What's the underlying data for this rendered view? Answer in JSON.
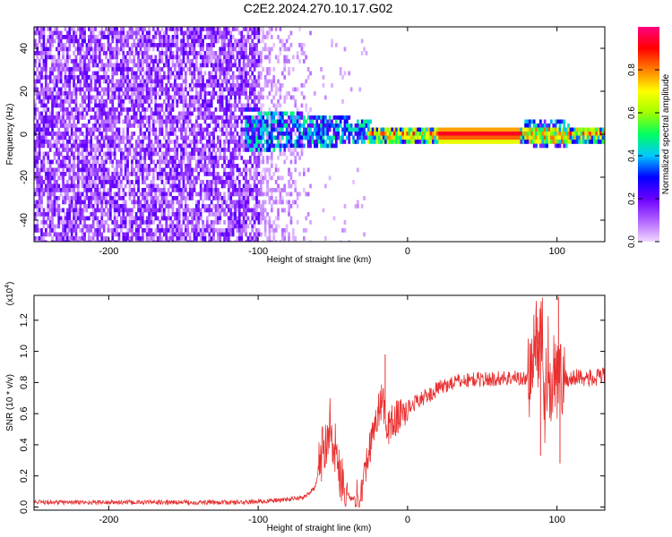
{
  "title": "C2E2.2024.270.10.17.G02",
  "chart_data": [
    {
      "type": "heatmap",
      "xlabel": "Height of straight line (km)",
      "ylabel": "Frequency (Hz)",
      "xlim": [
        -250,
        132
      ],
      "ylim": [
        -50,
        50
      ],
      "xticks": [
        -200,
        -100,
        0,
        100
      ],
      "yticks": [
        -40,
        -20,
        0,
        20,
        40
      ],
      "colorbar": {
        "label": "Normalized spectral amplitude",
        "range": [
          0,
          1
        ],
        "ticks": [
          0.0,
          0.2,
          0.4,
          0.6,
          0.8
        ],
        "colors": [
          "#f0d8ff",
          "#b060ff",
          "#6a00ff",
          "#0000ff",
          "#00c8ff",
          "#00ff60",
          "#a0ff00",
          "#ffff00",
          "#ff8000",
          "#ff0000",
          "#ff0080"
        ]
      },
      "regions": [
        {
          "x": [
            -250,
            -100
          ],
          "freq": [
            -50,
            50
          ],
          "amplitude": [
            0.05,
            0.25
          ],
          "pattern": "diffuse speckle"
        },
        {
          "x": [
            -100,
            -65
          ],
          "freq": [
            -45,
            48
          ],
          "amplitude": [
            0.02,
            0.1
          ],
          "pattern": "sparse speckle"
        },
        {
          "x": [
            -110,
            -30
          ],
          "freq": [
            -8,
            12
          ],
          "amplitude": [
            0.2,
            0.5
          ],
          "pattern": "dense cluster"
        },
        {
          "x": [
            -30,
            132
          ],
          "freq": [
            -4,
            4
          ],
          "amplitude": [
            0.4,
            1.0
          ],
          "pattern": "narrow band at 0 Hz"
        }
      ],
      "band_peak": {
        "x": [
          20,
          75
        ],
        "freq": 1,
        "amplitude": 0.95
      }
    },
    {
      "type": "line",
      "xlabel": "Height of straight line (km)",
      "ylabel": "SNR (10 * v/v)",
      "scale_label": "(x10",
      "scale_exponent": "4",
      "xlim": [
        -250,
        132
      ],
      "ylim": [
        -0.02,
        1.36
      ],
      "xticks": [
        -200,
        -100,
        0,
        100
      ],
      "yticks": [
        0.0,
        0.2,
        0.4,
        0.6,
        0.8,
        1.0,
        1.2
      ],
      "color": "#e83030",
      "x": [
        -250,
        -200,
        -150,
        -110,
        -90,
        -70,
        -62,
        -57,
        -52,
        -47,
        -42,
        -38,
        -35,
        -32,
        -28,
        -24,
        -20,
        -17,
        -14,
        -10,
        -6,
        -2,
        2,
        6,
        10,
        15,
        20,
        25,
        30,
        35,
        45,
        55,
        65,
        75,
        80,
        84,
        86,
        88,
        90,
        92,
        94,
        96,
        98,
        100,
        102,
        104,
        110,
        115,
        120,
        125,
        132
      ],
      "y": [
        0.03,
        0.03,
        0.03,
        0.03,
        0.04,
        0.06,
        0.12,
        0.35,
        0.55,
        0.3,
        0.12,
        0.05,
        0.06,
        0.1,
        0.25,
        0.45,
        0.6,
        0.7,
        0.5,
        0.55,
        0.58,
        0.62,
        0.65,
        0.68,
        0.7,
        0.72,
        0.76,
        0.78,
        0.8,
        0.81,
        0.82,
        0.82,
        0.83,
        0.83,
        0.82,
        0.9,
        1.15,
        0.95,
        1.18,
        0.6,
        1.0,
        0.7,
        0.95,
        0.85,
        0.8,
        0.83,
        0.82,
        0.84,
        0.83,
        0.82,
        0.85
      ],
      "spikes": [
        {
          "x": -15,
          "y": 0.98
        },
        {
          "x": 87,
          "y": 1.22
        },
        {
          "x": 101,
          "y": 1.35
        },
        {
          "x": 89,
          "y": 0.33
        },
        {
          "x": 102,
          "y": 0.28
        }
      ]
    }
  ]
}
